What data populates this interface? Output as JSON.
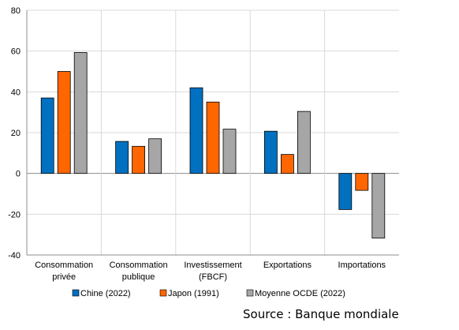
{
  "chart_data": {
    "type": "bar",
    "categories": [
      [
        "Consommation",
        "privée"
      ],
      [
        "Consommation",
        "publique"
      ],
      [
        "Investissement",
        "(FBCF)"
      ],
      [
        "Exportations"
      ],
      [
        "Importations"
      ]
    ],
    "series": [
      {
        "name": "Chine (2022)",
        "color": "#0070C0",
        "values": [
          37,
          15.7,
          42,
          20.7,
          -17.7
        ]
      },
      {
        "name": "Japon (1991)",
        "color": "#FF6600",
        "values": [
          50,
          13.3,
          35,
          9.3,
          -8.3
        ]
      },
      {
        "name": "Moyenne OCDE (2022)",
        "color": "#A6A6A6",
        "values": [
          59.3,
          17,
          21.7,
          30.4,
          -31.7
        ]
      }
    ],
    "ylim": [
      -40,
      80
    ],
    "yticks": [
      -40,
      -20,
      0,
      20,
      40,
      60,
      80
    ],
    "ytick_labels": [
      "-40",
      "-20",
      "0",
      "20",
      "40",
      "60",
      "80"
    ],
    "grid": true,
    "legend_position": "bottom"
  },
  "source_text": "Source : Banque mondiale"
}
